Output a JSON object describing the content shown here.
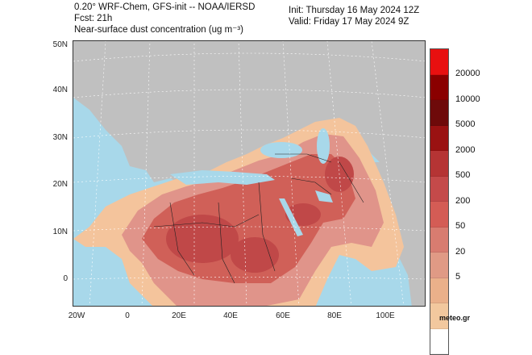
{
  "header": {
    "model": "0.20° WRF-Chem, GFS-init -- NOAA/IERSD",
    "forecast": "Fcst: 21h",
    "field": "Near-surface dust concentration (ug m⁻³)",
    "init": "Init: Thursday 16 May 2024  12Z",
    "valid": "Valid: Friday 17 May 2024  9Z"
  },
  "map": {
    "latitude_labels": [
      "50N",
      "40N",
      "30N",
      "20N",
      "10N",
      "0"
    ],
    "longitude_labels": [
      "20W",
      "0",
      "20E",
      "40E",
      "60E",
      "80E",
      "100E"
    ],
    "colors": {
      "ocean": "#a8d8ea",
      "land_clean": "#c0c0c0",
      "dust_low": "#f4c49c",
      "dust_mid": "#e0948a",
      "dust_high": "#d06058",
      "dust_core": "#c04848",
      "borders": "#222222"
    }
  },
  "colorbar": {
    "segments": [
      "#e81010",
      "#8a0000",
      "#6e0a0a",
      "#9a1212",
      "#b53434",
      "#c44a4a",
      "#d45c55",
      "#d87c70",
      "#e09a85",
      "#eab08a",
      "#f2c89e",
      "#ffffff"
    ],
    "labels": [
      "20000",
      "10000",
      "5000",
      "2000",
      "500",
      "200",
      "50",
      "20",
      "5"
    ]
  },
  "credit": "meteo.gr"
}
